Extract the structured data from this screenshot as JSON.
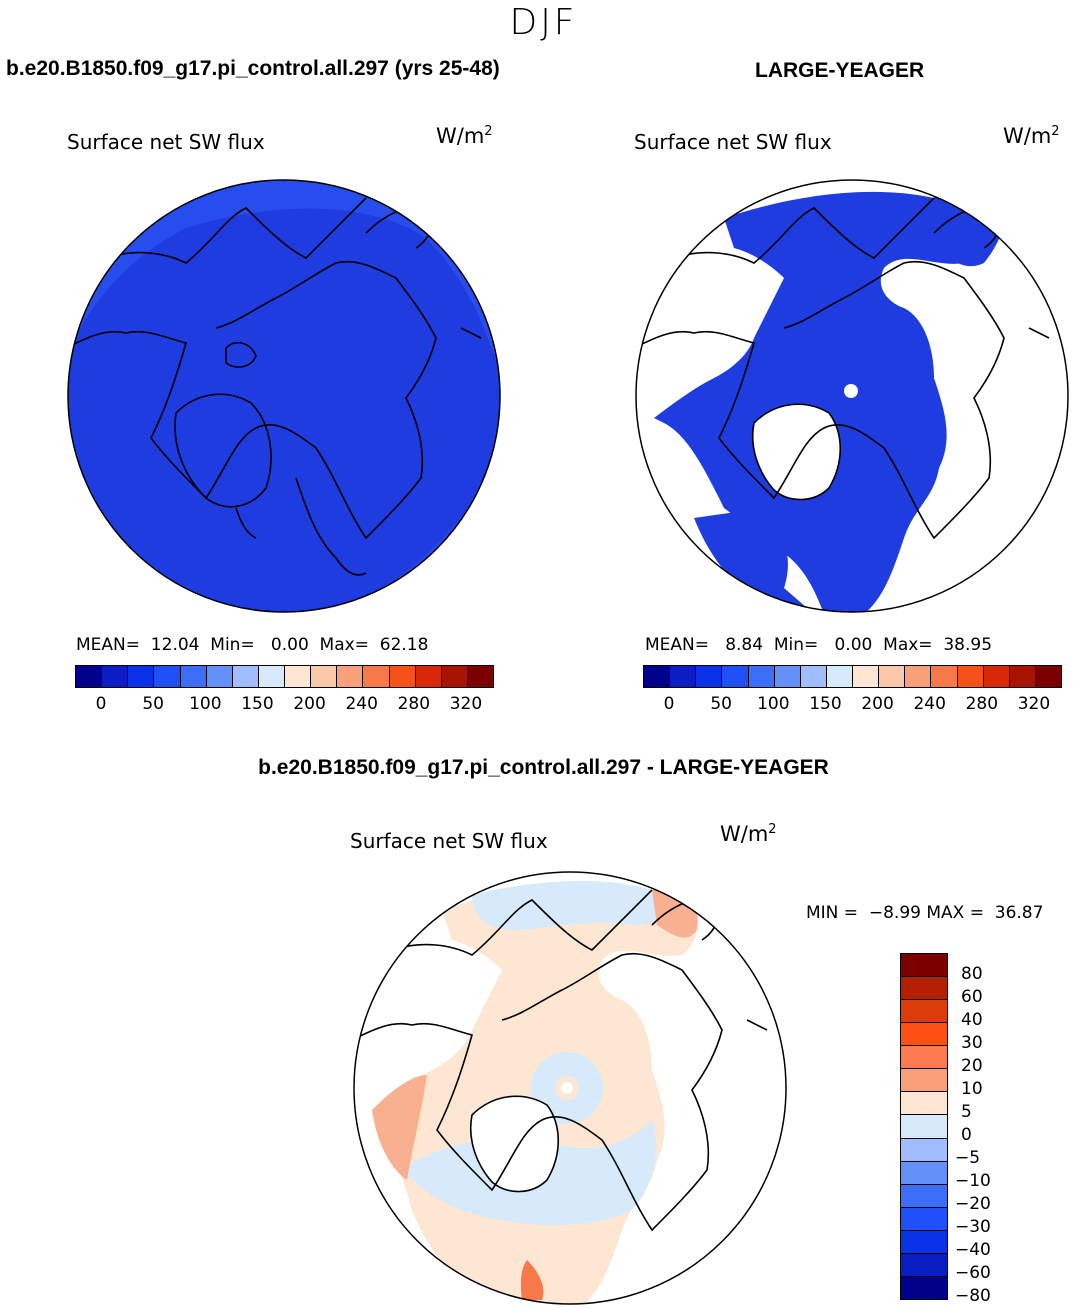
{
  "season": "DJF",
  "panels": {
    "left": {
      "case_title": "b.e20.B1850.f09_g17.pi_control.all.297 (yrs 25-48)",
      "variable": "Surface net SW flux",
      "units_base": "W/m",
      "units_exp": "2",
      "stats": "MEAN=  12.04  Min=   0.00  Max=  62.18"
    },
    "right": {
      "case_title": "LARGE-YEAGER",
      "variable": "Surface net SW flux",
      "units_base": "W/m",
      "units_exp": "2",
      "stats": "MEAN=   8.84  Min=   0.00  Max=  38.95"
    },
    "diff": {
      "case_title": "b.e20.B1850.f09_g17.pi_control.all.297 - LARGE-YEAGER",
      "variable": "Surface net SW flux",
      "units_base": "W/m",
      "units_exp": "2",
      "stats": "MIN =  −8.99 MAX =  36.87"
    }
  },
  "colorbar_abs": {
    "colors": [
      "#00008a",
      "#0a1ec4",
      "#0a32e6",
      "#1e50f5",
      "#3c6ef8",
      "#6490fa",
      "#a0beff",
      "#d6eafb",
      "#fde6d2",
      "#fbc8aa",
      "#f9a07a",
      "#f77848",
      "#f5521a",
      "#d82808",
      "#a81404",
      "#7a0000"
    ],
    "labels": [
      "0",
      "50",
      "100",
      "150",
      "200",
      "240",
      "280",
      "320"
    ]
  },
  "colorbar_diff": {
    "colors_top_to_bottom": [
      "#7a0000",
      "#b41e02",
      "#dc3c0a",
      "#ff5014",
      "#fd7a50",
      "#faa078",
      "#fde6d2",
      "#d6eafb",
      "#a0beff",
      "#6490fa",
      "#3c6ef8",
      "#1e50f5",
      "#0a32e6",
      "#0a1ec4",
      "#00008a"
    ],
    "labels": [
      "80",
      "60",
      "40",
      "30",
      "20",
      "10",
      "5",
      "0",
      "−5",
      "−10",
      "−20",
      "−30",
      "−40",
      "−60",
      "−80"
    ]
  },
  "colors": {
    "map_ocean_blue": "#1e3ce0",
    "map_ocean_blue_dark": "#1428c8",
    "map_rim_blue": "#2a50f0",
    "diff_light_blue": "#d6eafb",
    "diff_peach": "#fde6d2",
    "diff_salmon": "#f9b090"
  }
}
